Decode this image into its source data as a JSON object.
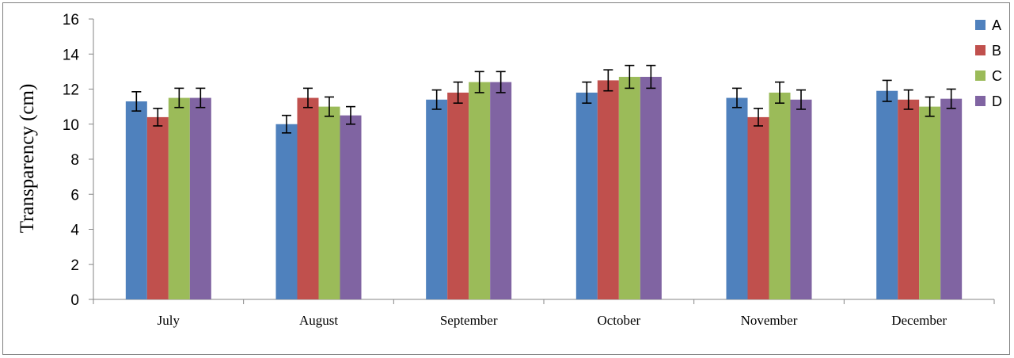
{
  "chart_data": {
    "type": "bar",
    "title": "",
    "xlabel": "",
    "ylabel": "Transparency (cm)",
    "ylim": [
      0,
      16
    ],
    "yticks": [
      0,
      2,
      4,
      6,
      8,
      10,
      12,
      14,
      16
    ],
    "grid": false,
    "legend_position": "right",
    "categories": [
      "July",
      "August",
      "September",
      "October",
      "November",
      "December"
    ],
    "series": [
      {
        "name": "A",
        "color": "#4f81bd",
        "values": [
          11.3,
          10.0,
          11.4,
          11.8,
          11.5,
          11.9
        ],
        "errors": [
          0.55,
          0.5,
          0.55,
          0.6,
          0.55,
          0.6
        ]
      },
      {
        "name": "B",
        "color": "#c0504d",
        "values": [
          10.4,
          11.5,
          11.8,
          12.5,
          10.4,
          11.4
        ],
        "errors": [
          0.5,
          0.55,
          0.6,
          0.6,
          0.5,
          0.55
        ]
      },
      {
        "name": "C",
        "color": "#9bbb59",
        "values": [
          11.5,
          11.0,
          12.4,
          12.7,
          11.8,
          11.0
        ],
        "errors": [
          0.55,
          0.55,
          0.6,
          0.65,
          0.6,
          0.55
        ]
      },
      {
        "name": "D",
        "color": "#8064a2",
        "values": [
          11.5,
          10.5,
          12.4,
          12.7,
          11.4,
          11.45
        ],
        "errors": [
          0.55,
          0.5,
          0.6,
          0.65,
          0.55,
          0.55
        ]
      }
    ]
  }
}
